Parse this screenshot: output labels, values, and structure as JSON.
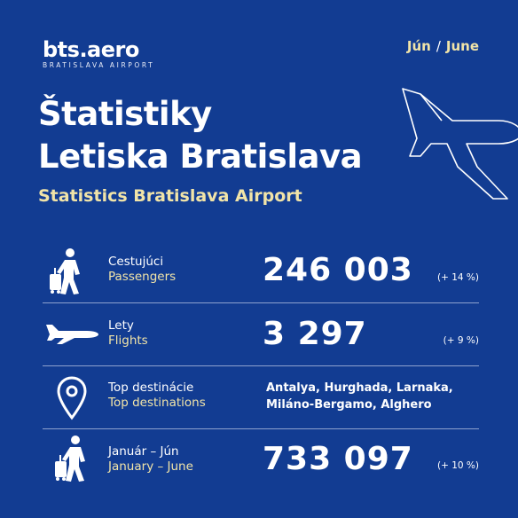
{
  "brand": {
    "name": "bts.aero",
    "tagline": "BRATISLAVA AIRPORT"
  },
  "month": {
    "sk": "Jún",
    "separator": "/",
    "en": "June"
  },
  "title": {
    "line1": "Štatistiky",
    "line2": "Letiska Bratislava"
  },
  "subtitle": "Statistics Bratislava Airport",
  "stats": {
    "passengers": {
      "label_sk": "Cestujúci",
      "label_en": "Passengers",
      "value": "246 003",
      "change": "(+ 14 %)",
      "icon": "person-luggage-icon"
    },
    "flights": {
      "label_sk": "Lety",
      "label_en": "Flights",
      "value": "3 297",
      "change": "(+ 9 %)",
      "icon": "airplane-icon"
    },
    "destinations": {
      "label_sk": "Top destinácie",
      "label_en": "Top destinations",
      "line1": "Antalya, Hurghada, Larnaka,",
      "line2": "Miláno-Bergamo, Alghero",
      "icon": "location-pin-icon"
    },
    "ytd": {
      "label_sk": "Január – Jún",
      "label_en": "January – June",
      "value": "733 097",
      "change": "(+ 10 %)",
      "icon": "person-luggage-icon"
    }
  },
  "colors": {
    "background": "#123c92",
    "accent": "#f1e4a8",
    "text": "#ffffff"
  }
}
